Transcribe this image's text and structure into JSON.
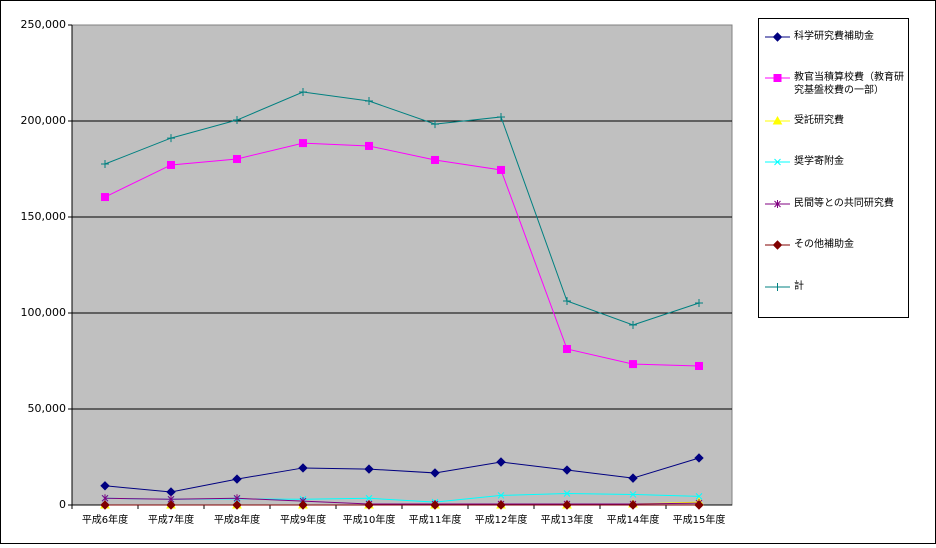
{
  "chart_data": {
    "type": "line",
    "categories": [
      "平成6年度",
      "平成7年度",
      "平成8年度",
      "平成9年度",
      "平成10年度",
      "平成11年度",
      "平成12年度",
      "平成13年度",
      "平成14年度",
      "平成15年度"
    ],
    "series": [
      {
        "name": "科学研究費補助金",
        "color": "#000080",
        "marker": "diamond",
        "values": [
          10000,
          6800,
          13500,
          19300,
          18700,
          16700,
          22400,
          18200,
          14000,
          24500
        ]
      },
      {
        "name": "教官当積算校費（教育研究基盤校費の一部）",
        "color": "#ff00ff",
        "marker": "square",
        "values": [
          160400,
          177100,
          180200,
          188500,
          187000,
          179700,
          174500,
          81250,
          73400,
          72400
        ]
      },
      {
        "name": "受託研究費",
        "color": "#ffff00",
        "marker": "triangle",
        "values": [
          0,
          0,
          0,
          0,
          0,
          0,
          0,
          0,
          500,
          1500
        ]
      },
      {
        "name": "奨学寄附金",
        "color": "#00ffff",
        "marker": "x",
        "values": [
          3500,
          3000,
          3200,
          3000,
          3500,
          1500,
          5000,
          6000,
          5500,
          4500
        ]
      },
      {
        "name": "民間等との共同研究費",
        "color": "#800080",
        "marker": "star",
        "values": [
          3500,
          3000,
          3500,
          2000,
          500,
          500,
          500,
          500,
          500,
          1000
        ]
      },
      {
        "name": "その他補助金",
        "color": "#800000",
        "marker": "diamond",
        "values": [
          0,
          0,
          0,
          0,
          0,
          0,
          0,
          0,
          0,
          0
        ]
      },
      {
        "name": "計",
        "color": "#008080",
        "marker": "plus",
        "values": [
          177600,
          191100,
          200500,
          215100,
          210400,
          198400,
          202100,
          106250,
          93750,
          105200
        ]
      }
    ],
    "ylim": [
      0,
      250000
    ],
    "yticks": [
      0,
      {
        "value": 50000,
        "label": "50,000"
      },
      {
        "value": 100000,
        "label": "100,000"
      },
      {
        "value": 150000,
        "label": "150,000"
      },
      {
        "value": 200000,
        "label": "200,000"
      },
      {
        "value": 250000,
        "label": "250,000"
      }
    ],
    "grid": true,
    "legend": "right"
  }
}
